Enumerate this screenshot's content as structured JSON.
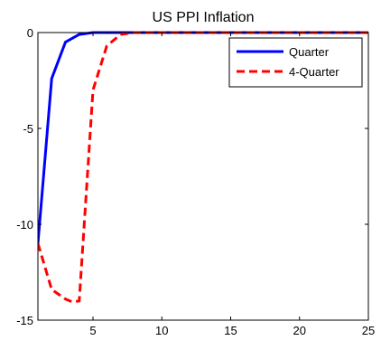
{
  "chart_data": {
    "type": "line",
    "title": "US PPI Inflation",
    "xlabel": "",
    "ylabel": "",
    "xlim": [
      1,
      25
    ],
    "ylim": [
      -15,
      0
    ],
    "x_ticks": [
      5,
      10,
      15,
      20,
      25
    ],
    "y_ticks": [
      0,
      -5,
      -10,
      -15
    ],
    "grid": false,
    "legend_position": "top-right",
    "series": [
      {
        "name": "Quarter",
        "color": "#0000ff",
        "style": "solid",
        "x": [
          1,
          2,
          3,
          4,
          5,
          6,
          7,
          8,
          9,
          10,
          11,
          12,
          13,
          14,
          15,
          16,
          17,
          18,
          19,
          20,
          21,
          22,
          23,
          24,
          25
        ],
        "y": [
          -11.0,
          -2.4,
          -0.5,
          -0.1,
          0,
          0,
          0,
          0,
          0,
          0,
          0,
          0,
          0,
          0,
          0,
          0,
          0,
          0,
          0,
          0,
          0,
          0,
          0,
          0,
          0
        ]
      },
      {
        "name": "4-Quarter",
        "color": "#ff0000",
        "style": "dashed",
        "x": [
          1,
          2,
          3,
          3.5,
          4,
          5,
          6,
          7,
          8,
          9,
          10,
          11,
          12,
          13,
          14,
          15,
          16,
          17,
          18,
          19,
          20,
          21,
          22,
          23,
          24,
          25
        ],
        "y": [
          -11.0,
          -13.4,
          -13.9,
          -14.05,
          -14.0,
          -3.0,
          -0.7,
          -0.1,
          0,
          0,
          0,
          0,
          0,
          0,
          0,
          0,
          0,
          0,
          0,
          0,
          0,
          0,
          0,
          0,
          0,
          0
        ]
      }
    ]
  }
}
